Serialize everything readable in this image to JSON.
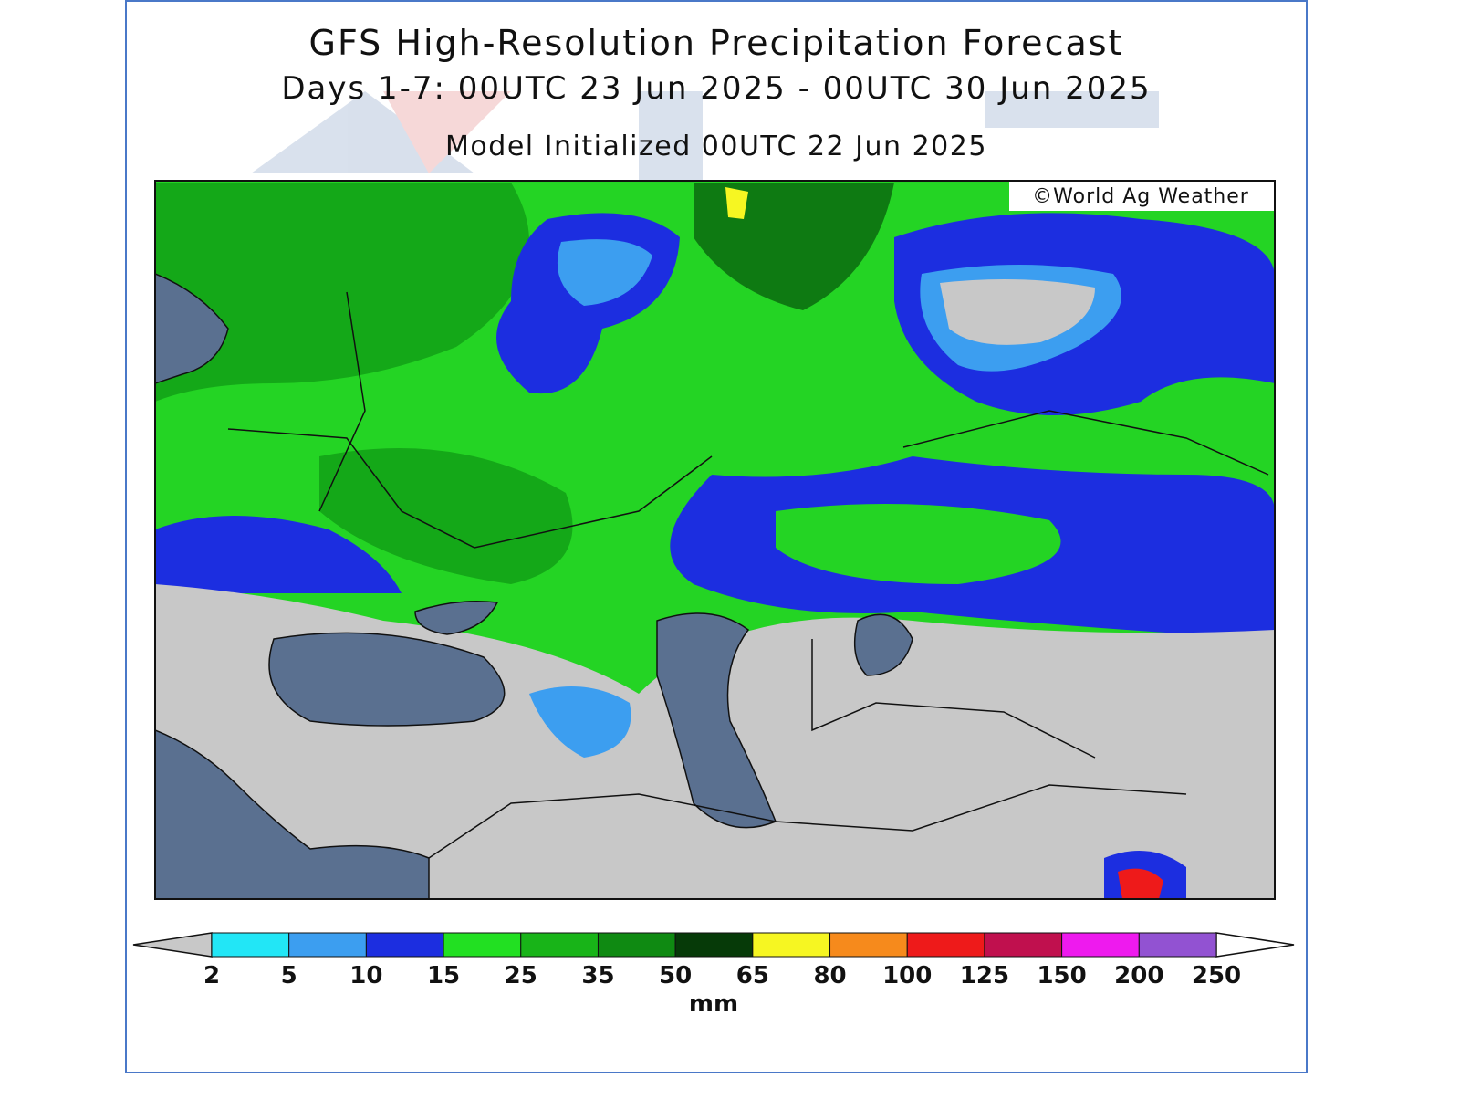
{
  "header": {
    "title": "GFS High-Resolution Precipitation Forecast",
    "subtitle": "Days 1-7: 00UTC 23 Jun 2025 - 00UTC 30 Jun 2025",
    "initialized": "Model Initialized 00UTC 22 Jun 2025"
  },
  "map": {
    "credit": "©World Ag Weather"
  },
  "legend": {
    "bins": [
      2,
      5,
      10,
      15,
      25,
      35,
      50,
      65,
      80,
      100,
      125,
      150,
      200,
      250
    ],
    "colors": [
      "#22e6f6",
      "#3c9ef0",
      "#1c2ee0",
      "#22e022",
      "#18b418",
      "#0f8a12",
      "#063a08",
      "#f6f622",
      "#f68a1c",
      "#ee1a1a",
      "#c0104e",
      "#ee1aee",
      "#9252d2"
    ],
    "under_color": "#c8c8c8",
    "over_color": "#ffffff",
    "unit": "mm"
  }
}
